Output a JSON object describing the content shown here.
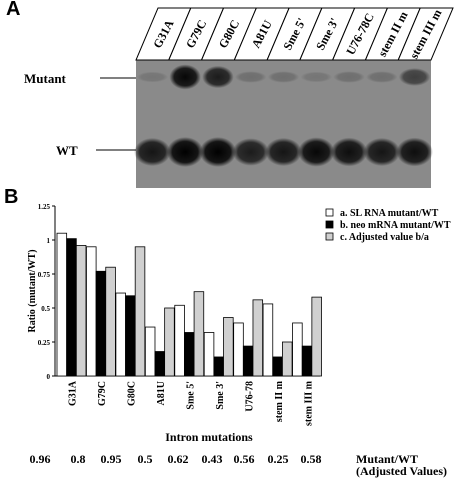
{
  "panel_a": {
    "letter": "A",
    "lanes": [
      "G31A",
      "G79C",
      "G80C",
      "A81U",
      "Sme 5'",
      "Sme 3'",
      "U76-78C",
      "stem II m",
      "stem III m"
    ],
    "band_labels": {
      "mutant": "Mutant",
      "wt": "WT"
    },
    "mutant_band_intensity": [
      0.15,
      0.95,
      0.8,
      0.2,
      0.2,
      0.15,
      0.2,
      0.2,
      0.55
    ],
    "wt_band_intensity": [
      0.85,
      1.0,
      1.0,
      0.8,
      0.85,
      0.95,
      0.9,
      0.85,
      0.9
    ]
  },
  "panel_b": {
    "letter": "B",
    "legend": [
      {
        "marker": "a.",
        "label": "SL RNA mutant/WT",
        "color": "#ffffff"
      },
      {
        "marker": "b.",
        "label": "neo mRNA  mutant/WT",
        "color": "#000000"
      },
      {
        "marker": "c.",
        "label": "Adjusted value b/a",
        "color": "#d0d0d0"
      }
    ],
    "adjusted_values": [
      "0.96",
      "0.8",
      "0.95",
      "0.5",
      "0.62",
      "0.43",
      "0.56",
      "0.25",
      "0.58"
    ],
    "adjusted_label_line1": "Mutant/WT",
    "adjusted_label_line2": "(Adjusted Values)"
  },
  "chart_data": {
    "type": "bar",
    "categories": [
      "G31A",
      "G79C",
      "G80C",
      "A81U",
      "Sme 5'",
      "Sme 3'",
      "U76-78",
      "stem II m",
      "stem III m"
    ],
    "series": [
      {
        "name": "a.  SL RNA mutant/WT",
        "color": "#ffffff",
        "values": [
          1.05,
          0.95,
          0.61,
          0.36,
          0.52,
          0.32,
          0.39,
          0.53,
          0.39
        ]
      },
      {
        "name": "b.  neo mRNA  mutant/WT",
        "color": "#000000",
        "values": [
          1.01,
          0.77,
          0.59,
          0.18,
          0.32,
          0.14,
          0.22,
          0.14,
          0.22
        ]
      },
      {
        "name": "c.  Adjusted value b/a",
        "color": "#d0d0d0",
        "values": [
          0.96,
          0.8,
          0.95,
          0.5,
          0.62,
          0.43,
          0.56,
          0.25,
          0.58
        ]
      }
    ],
    "xlabel": "Intron mutations",
    "ylabel": "Ratio (mutant/WT)",
    "ylim": [
      0,
      1.25
    ],
    "yticks": [
      "0",
      "0.25",
      "0.5",
      "0.75",
      "1",
      "1.25"
    ],
    "legend_position": "top-right",
    "grid": false
  }
}
